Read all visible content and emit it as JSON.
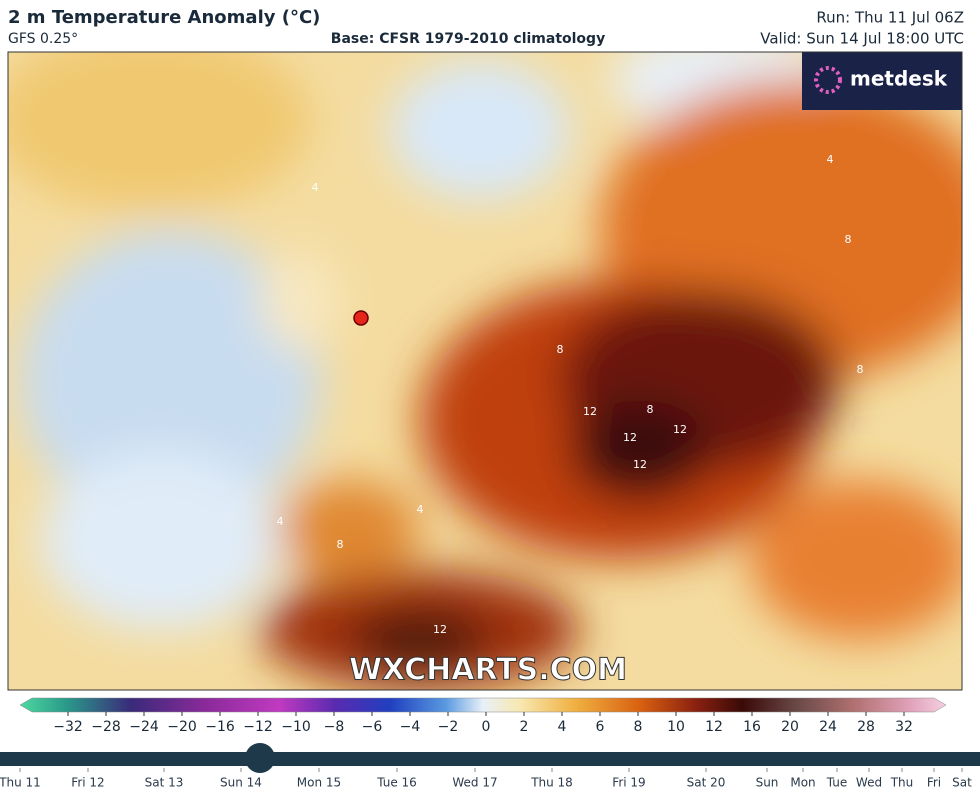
{
  "header": {
    "title": "2 m Temperature Anomaly (°C)",
    "model": "GFS 0.25°",
    "base": "Base: CFSR 1979-2010 climatology",
    "run": "Run: Thu 11 Jul 06Z",
    "valid": "Valid: Sun 14 Jul 18:00 UTC"
  },
  "map": {
    "logo": "metdesk",
    "watermark": "WXCHARTS.COM",
    "contour_labels": [
      "4",
      "8",
      "8",
      "12",
      "12",
      "12",
      "12",
      "8",
      "4",
      "8",
      "12",
      "4",
      "8",
      "4"
    ]
  },
  "colorbar": {
    "labels": [
      "−32",
      "−28",
      "−24",
      "−20",
      "−16",
      "−12",
      "−10",
      "−8",
      "−6",
      "−4",
      "−2",
      "0",
      "2",
      "4",
      "6",
      "8",
      "10",
      "12",
      "16",
      "20",
      "24",
      "28",
      "32"
    ]
  },
  "timeline": {
    "labels": [
      "Thu 11",
      "Fri 12",
      "Sat 13",
      "Sun 14",
      "Mon 15",
      "Tue 16",
      "Wed 17",
      "Thu 18",
      "Fri 19",
      "Sat 20",
      "Sun",
      "Mon",
      "Tue",
      "Wed",
      "Thu",
      "Fri",
      "Sat"
    ]
  }
}
